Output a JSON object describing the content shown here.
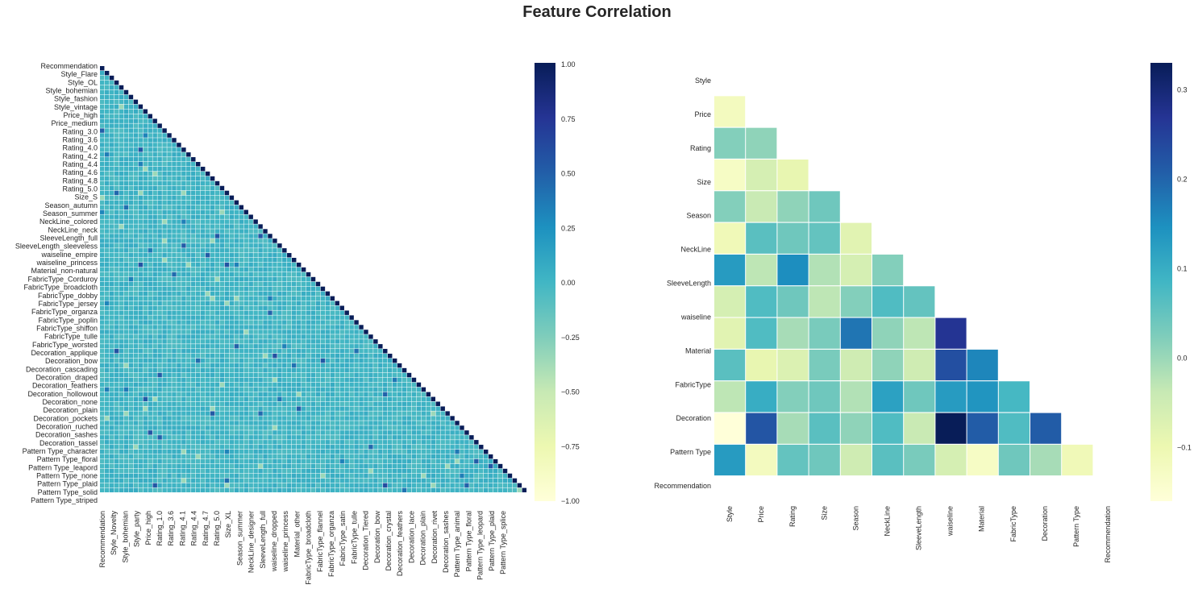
{
  "title": "Feature Correlation",
  "colormap": [
    "#ffffd9",
    "#edf8b1",
    "#c7e9b4",
    "#7fcdbb",
    "#41b6c4",
    "#1d91c0",
    "#225ea8",
    "#253494",
    "#081d58"
  ],
  "chart_data": [
    {
      "type": "heatmap",
      "mask": "upper-triangle",
      "vmin": -1,
      "vmax": 1,
      "colorbar_ticks": [
        "1.00",
        "0.75",
        "0.50",
        "0.25",
        "0.00",
        "−0.25",
        "−0.50",
        "−0.75",
        "−1.00"
      ],
      "labels": [
        "Recommendation",
        "Style_Novelty",
        "Style_Flare",
        "Style_bohemian",
        "Style_OL",
        "Style_party",
        "Style_bohemian",
        "Price_high",
        "Style_fashion",
        "Rating_1.0",
        "Style_vintage",
        "Rating_3.6",
        "Price_high",
        "Rating_4.1",
        "Price_medium",
        "Rating_4.4",
        "Rating_3.0",
        "Rating_4.7",
        "Rating_3.6",
        "Rating_5.0",
        "Rating_4.0",
        "Size_XL",
        "Rating_4.2",
        "Season_summer",
        "Rating_4.4",
        "NeckLine_designer",
        "Rating_4.6",
        "SleeveLength_full",
        "Rating_4.8",
        "waiseline_dropped",
        "Rating_5.0",
        "waiseline_princess",
        "Size_S",
        "Material_other",
        "Season_autumn",
        "FabricType_broadcloth",
        "Season_summer",
        "FabricType_flannel",
        "NeckLine_colored",
        "FabricType_organza",
        "NeckLine_neck",
        "FabricType_satin",
        "SleeveLength_full",
        "FabricType_tulle",
        "SleeveLength_sleeveless",
        "Decoration_Tiered",
        "waiseline_empire",
        "Decoration_bow",
        "waiseline_princess",
        "Decoration_crystal",
        "Material_non-natural",
        "Decoration_feathers",
        "FabricType_Corduroy",
        "Decoration_lace",
        "FabricType_broadcloth",
        "Decoration_plain",
        "FabricType_dobby",
        "Decoration_rivet",
        "FabricType_jersey",
        "Decoration_sashes",
        "FabricType_organza",
        "Pattern Type_animal",
        "FabricType_poplin",
        "Pattern Type_floral",
        "FabricType_shiffon",
        "Pattern Type_leopard",
        "FabricType_tulle",
        "Pattern Type_plaid",
        "FabricType_worsted",
        "Pattern Type_splice",
        "Decoration_applique",
        "Decoration_bow",
        "Decoration_cascading",
        "Decoration_draped",
        "Decoration_feathers",
        "Decoration_hollowout",
        "Decoration_none",
        "Decoration_plain",
        "Decoration_pockets",
        "Decoration_ruched",
        "Decoration_sashes",
        "Decoration_tassel",
        "Pattern Type_character",
        "Pattern Type_floral",
        "Pattern Type_leapord",
        "Pattern Type_none",
        "Pattern Type_plaid",
        "Pattern Type_solid",
        "Pattern Type_striped"
      ],
      "y_tick_labels": [
        "Recommendation",
        "Style_Flare",
        "Style_OL",
        "Style_bohemian",
        "Style_fashion",
        "Style_vintage",
        "Price_high",
        "Price_medium",
        "Rating_3.0",
        "Rating_3.6",
        "Rating_4.0",
        "Rating_4.2",
        "Rating_4.4",
        "Rating_4.6",
        "Rating_4.8",
        "Rating_5.0",
        "Size_S",
        "Season_autumn",
        "Season_summer",
        "NeckLine_colored",
        "NeckLine_neck",
        "SleeveLength_full",
        "SleeveLength_sleeveless",
        "waiseline_empire",
        "waiseline_princess",
        "Material_non-natural",
        "FabricType_Corduroy",
        "FabricType_broadcloth",
        "FabricType_dobby",
        "FabricType_jersey",
        "FabricType_organza",
        "FabricType_poplin",
        "FabricType_shiffon",
        "FabricType_tulle",
        "FabricType_worsted",
        "Decoration_applique",
        "Decoration_bow",
        "Decoration_cascading",
        "Decoration_draped",
        "Decoration_feathers",
        "Decoration_hollowout",
        "Decoration_none",
        "Decoration_plain",
        "Decoration_pockets",
        "Decoration_ruched",
        "Decoration_sashes",
        "Decoration_tassel",
        "Pattern Type_character",
        "Pattern Type_floral",
        "Pattern Type_leapord",
        "Pattern Type_none",
        "Pattern Type_plaid",
        "Pattern Type_solid",
        "Pattern Type_striped"
      ],
      "x_tick_labels": [
        "Recommendation",
        "Style_Novelty",
        "Style_bohemian",
        "Style_party",
        "Price_high",
        "Rating_1.0",
        "Rating_3.6",
        "Rating_4.1",
        "Rating_4.4",
        "Rating_4.7",
        "Rating_5.0",
        "Size_XL",
        "Season_summer",
        "NeckLine_designer",
        "SleeveLength_full",
        "waiseline_dropped",
        "waiseline_princess",
        "Material_other",
        "FabricType_broadcloth",
        "FabricType_flannel",
        "FabricType_organza",
        "FabricType_satin",
        "FabricType_tulle",
        "Decoration_Tiered",
        "Decoration_bow",
        "Decoration_crystal",
        "Decoration_feathers",
        "Decoration_lace",
        "Decoration_plain",
        "Decoration_rivet",
        "Decoration_sashes",
        "Pattern Type_animal",
        "Pattern Type_floral",
        "Pattern Type_leopard",
        "Pattern Type_plaid",
        "Pattern Type_splice"
      ]
    },
    {
      "type": "heatmap",
      "mask": "upper-triangle",
      "vmin": -0.16,
      "vmax": 0.33,
      "colorbar_ticks": [
        "0.3",
        "0.2",
        "0.1",
        "0.0",
        "−0.1"
      ],
      "colorbar_tick_values": [
        0.3,
        0.2,
        0.1,
        0.0,
        -0.1
      ],
      "labels": [
        "Style",
        "Price",
        "Rating",
        "Size",
        "Season",
        "NeckLine",
        "SleeveLength",
        "waiseline",
        "Material",
        "FabricType",
        "Decoration",
        "Pattern Type",
        "Recommendation"
      ],
      "values": [
        [],
        [
          -0.12
        ],
        [
          0.02,
          0.01
        ],
        [
          -0.13,
          -0.06,
          -0.09
        ],
        [
          0.02,
          -0.04,
          0.01,
          0.04
        ],
        [
          -0.11,
          0.06,
          0.04,
          0.05,
          -0.08
        ],
        [
          0.13,
          -0.03,
          0.15,
          -0.02,
          -0.06,
          0.02
        ],
        [
          -0.06,
          0.07,
          0.04,
          -0.03,
          0.02,
          0.07,
          0.05
        ],
        [
          -0.08,
          0.07,
          -0.01,
          0.03,
          0.18,
          0.01,
          -0.03,
          0.27
        ],
        [
          0.06,
          -0.09,
          -0.07,
          0.03,
          -0.05,
          0.01,
          -0.05,
          0.23,
          0.16
        ],
        [
          -0.03,
          0.1,
          0.02,
          0.04,
          -0.02,
          0.12,
          0.04,
          0.13,
          0.14,
          0.08
        ],
        [
          -0.16,
          0.22,
          -0.01,
          0.06,
          0.01,
          0.07,
          -0.04,
          0.33,
          0.21,
          0.07,
          0.21
        ],
        [
          0.13,
          -0.12,
          0.05,
          0.04,
          -0.05,
          0.06,
          0.03,
          -0.06,
          -0.13,
          0.04,
          -0.01,
          -0.11
        ]
      ]
    }
  ]
}
